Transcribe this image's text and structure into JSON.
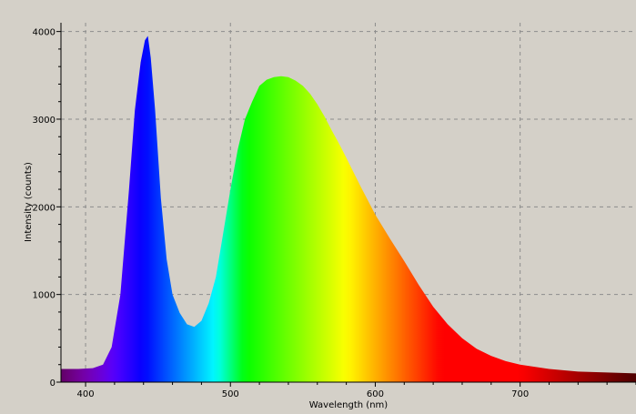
{
  "chart_data": {
    "type": "area",
    "title": "",
    "xlabel": "Wavelength (nm)",
    "ylabel": "Intensity (counts)",
    "xlim": [
      383,
      780
    ],
    "ylim": [
      0,
      4100
    ],
    "x_ticks": [
      400,
      500,
      600,
      700
    ],
    "y_ticks": [
      0,
      1000,
      2000,
      3000,
      4000
    ],
    "grid": true,
    "fill": "spectral rainbow gradient by wavelength",
    "series": [
      {
        "x": [
          383,
          395,
          405,
          412,
          418,
          424,
          430,
          434,
          438,
          441,
          443,
          445,
          448,
          452,
          456,
          460,
          465,
          470,
          475,
          480,
          485,
          490,
          495,
          500,
          505,
          510,
          515,
          520,
          525,
          530,
          535,
          540,
          545,
          550,
          555,
          560,
          565,
          570,
          575,
          580,
          590,
          600,
          610,
          620,
          630,
          640,
          650,
          660,
          670,
          680,
          690,
          700,
          720,
          740,
          760,
          780
        ],
        "y": [
          150,
          150,
          160,
          200,
          400,
          1000,
          2200,
          3100,
          3650,
          3900,
          3950,
          3700,
          3100,
          2100,
          1400,
          1000,
          790,
          660,
          630,
          700,
          900,
          1200,
          1700,
          2200,
          2650,
          3000,
          3200,
          3380,
          3450,
          3480,
          3490,
          3480,
          3440,
          3380,
          3290,
          3170,
          3030,
          2870,
          2720,
          2560,
          2230,
          1910,
          1640,
          1380,
          1110,
          860,
          660,
          500,
          380,
          300,
          240,
          200,
          150,
          120,
          110,
          100
        ]
      }
    ]
  }
}
